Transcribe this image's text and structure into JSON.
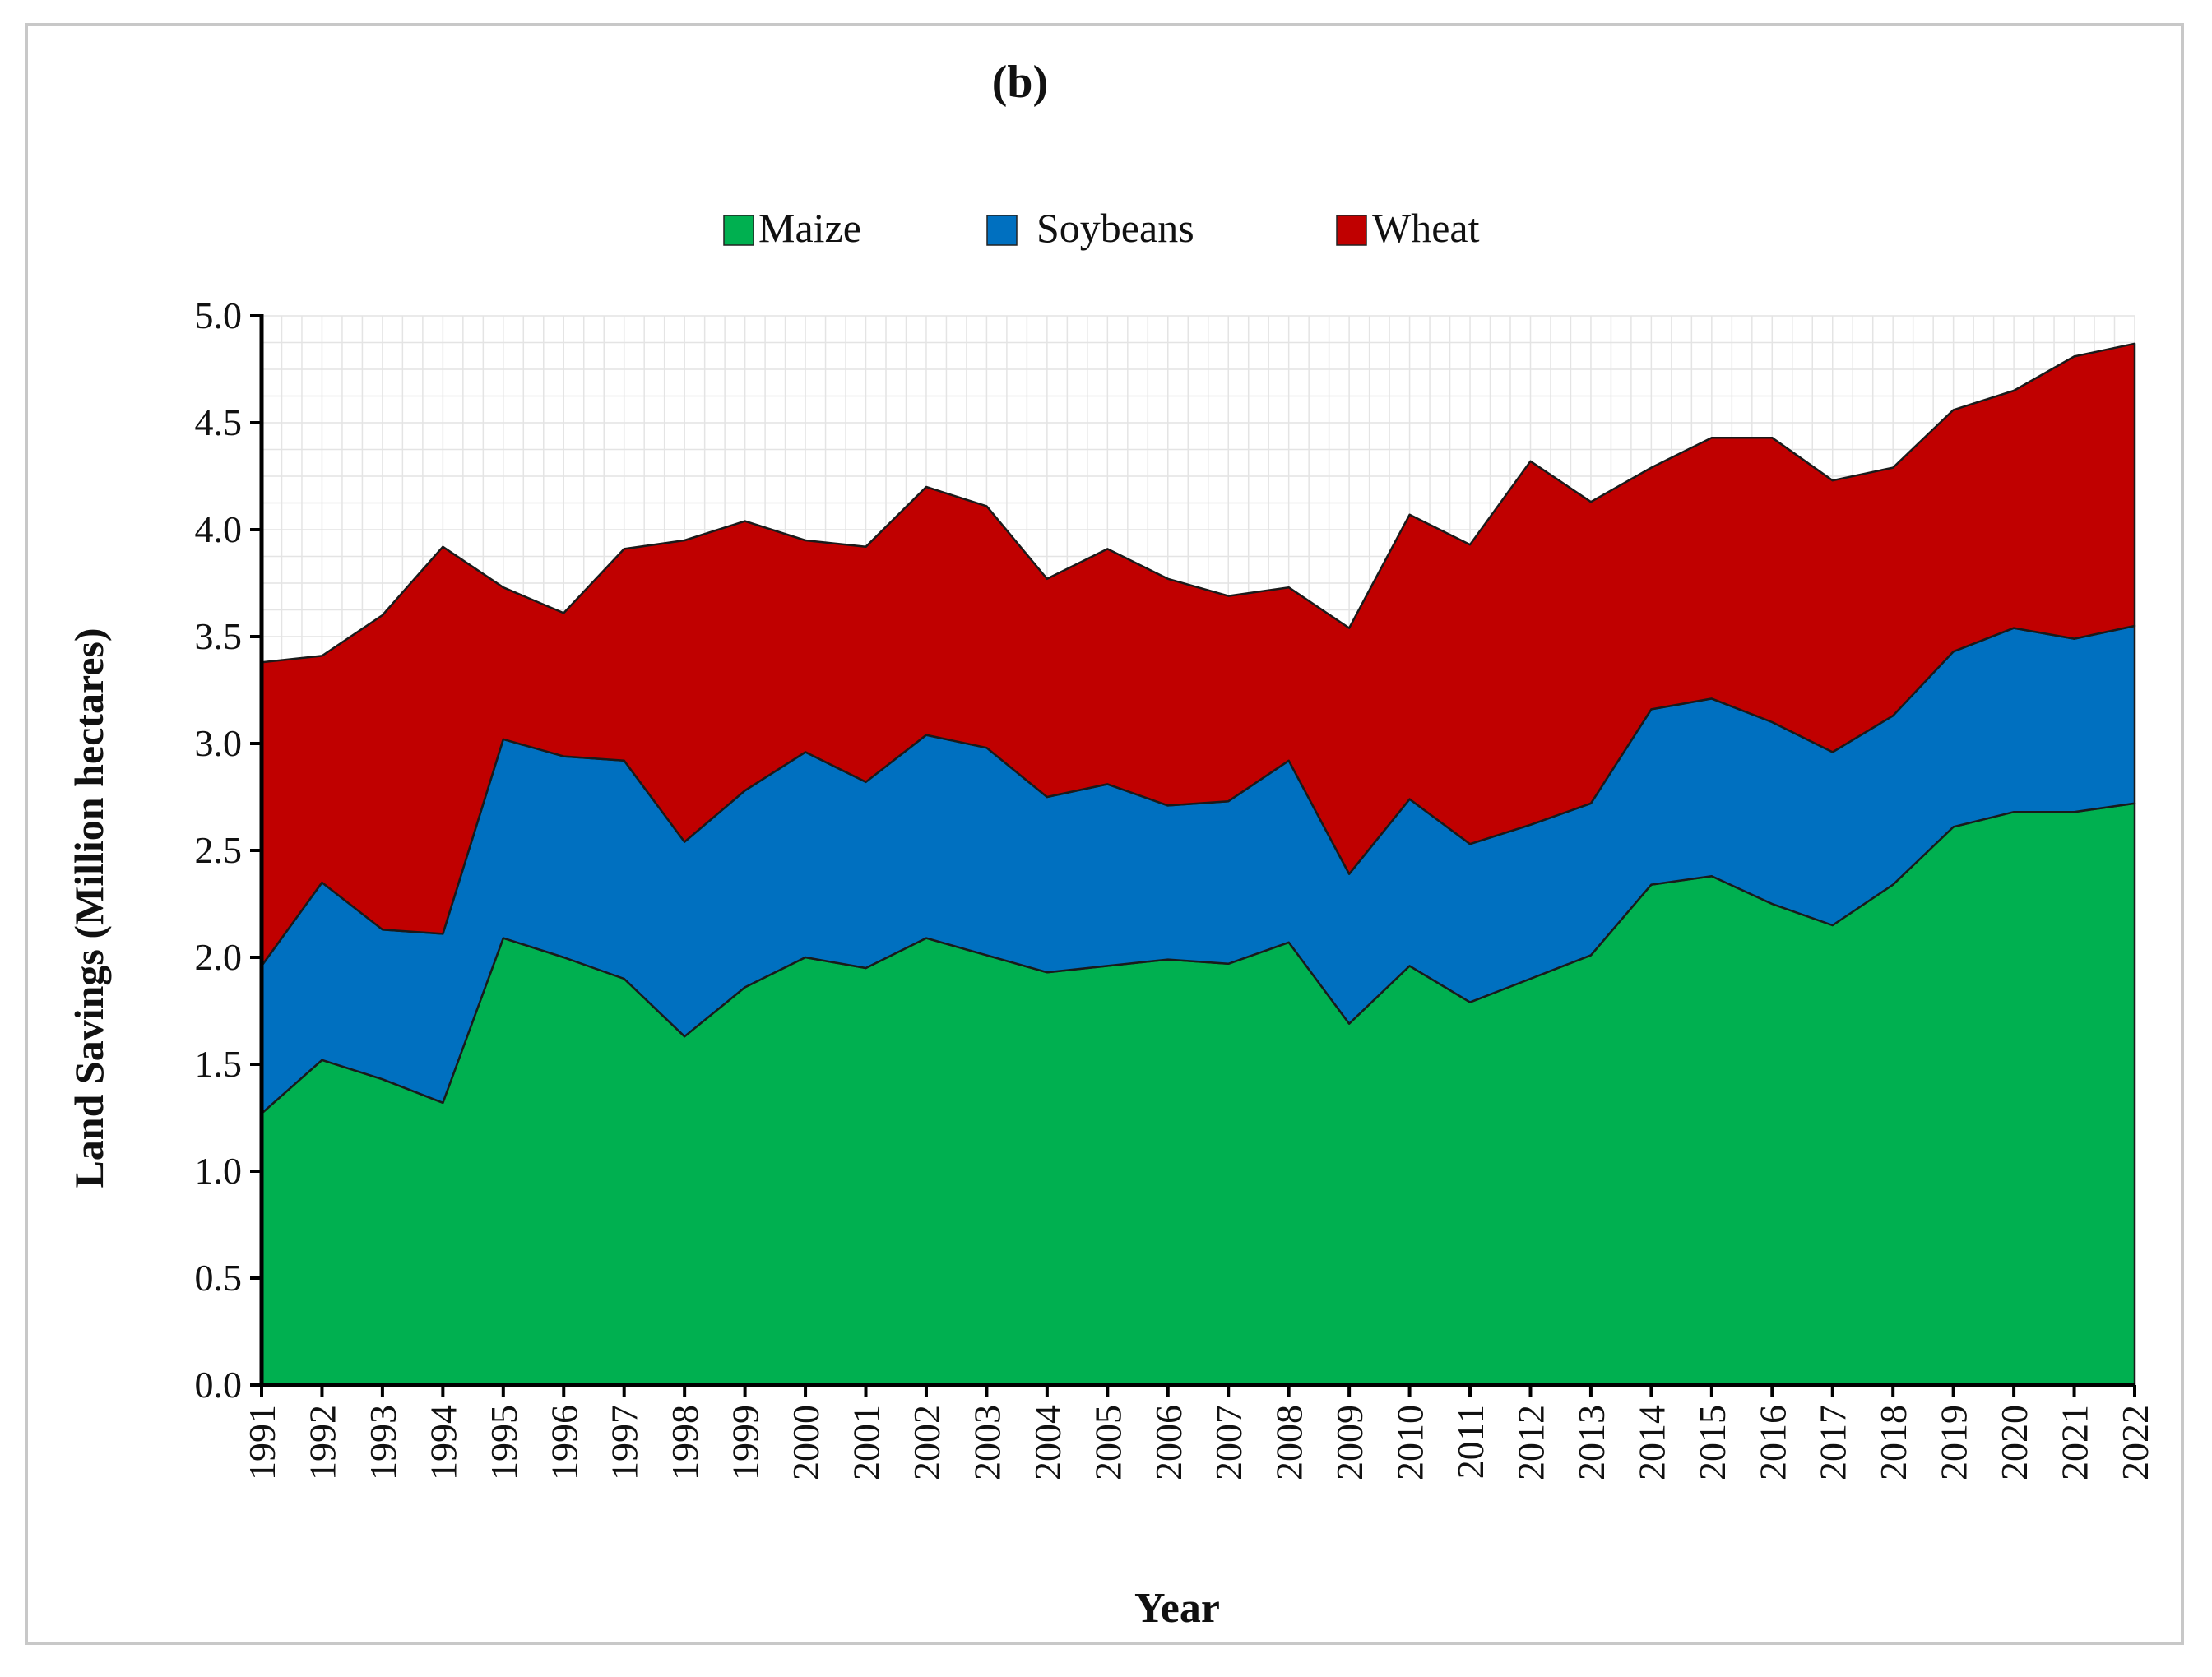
{
  "chart_data": {
    "type": "area",
    "stacked": true,
    "title": "(b)",
    "xlabel": "Year",
    "ylabel": "Land Savings (Million  hectares)",
    "ylim": [
      0,
      5
    ],
    "yticks": [
      "0.0",
      "0.5",
      "1.0",
      "1.5",
      "2.0",
      "2.5",
      "3.0",
      "3.5",
      "4.0",
      "4.5",
      "5.0"
    ],
    "grid": true,
    "legend_position": "top-center",
    "categories": [
      "1991",
      "1992",
      "1993",
      "1994",
      "1995",
      "1996",
      "1997",
      "1998",
      "1999",
      "2000",
      "2001",
      "2002",
      "2003",
      "2004",
      "2005",
      "2006",
      "2007",
      "2008",
      "2009",
      "2010",
      "2011",
      "2012",
      "2013",
      "2014",
      "2015",
      "2016",
      "2017",
      "2018",
      "2019",
      "2020",
      "2021",
      "2022"
    ],
    "series": [
      {
        "name": "Maize",
        "color": "#00b050",
        "values": [
          1.27,
          1.52,
          1.43,
          1.32,
          2.09,
          2.0,
          1.9,
          1.63,
          1.86,
          2.0,
          1.95,
          2.09,
          2.01,
          1.93,
          1.96,
          1.99,
          1.97,
          2.07,
          1.69,
          1.96,
          1.79,
          1.9,
          2.01,
          2.34,
          2.38,
          2.25,
          2.15,
          2.34,
          2.61,
          2.68,
          2.68,
          2.72
        ]
      },
      {
        "name": "Soybeans",
        "color": "#0070c0",
        "values": [
          0.69,
          0.83,
          0.7,
          0.79,
          0.93,
          0.94,
          1.02,
          0.91,
          0.92,
          0.96,
          0.87,
          0.95,
          0.97,
          0.82,
          0.85,
          0.72,
          0.76,
          0.85,
          0.7,
          0.78,
          0.74,
          0.72,
          0.71,
          0.82,
          0.83,
          0.85,
          0.81,
          0.79,
          0.82,
          0.86,
          0.81,
          0.83
        ]
      },
      {
        "name": "Wheat",
        "color": "#c00000",
        "values": [
          1.42,
          1.06,
          1.47,
          1.81,
          0.71,
          0.67,
          0.99,
          1.41,
          1.26,
          0.99,
          1.1,
          1.16,
          1.13,
          1.02,
          1.1,
          1.06,
          0.96,
          0.81,
          1.15,
          1.33,
          1.4,
          1.7,
          1.41,
          1.13,
          1.22,
          1.33,
          1.27,
          1.16,
          1.13,
          1.11,
          1.32,
          1.32
        ]
      }
    ]
  }
}
